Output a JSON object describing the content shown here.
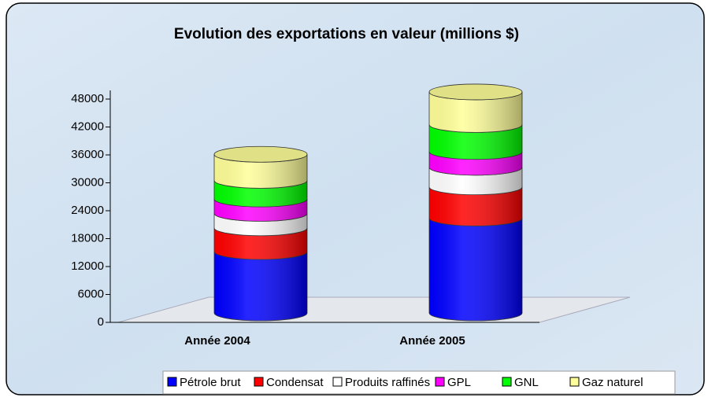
{
  "chart_data": {
    "type": "bar3d_stacked",
    "title": "Evolution des exportations en valeur (millions $)",
    "categories": [
      "Année 2004",
      "Année 2005"
    ],
    "series": [
      {
        "name": "Pétrole brut",
        "color": "#0000ff",
        "values": [
          13200,
          20400
        ]
      },
      {
        "name": "Condensat",
        "color": "#ff0000",
        "values": [
          5100,
          6700
        ]
      },
      {
        "name": "Produits raffinés",
        "color": "#ffffff",
        "values": [
          3100,
          4200
        ]
      },
      {
        "name": "GPL",
        "color": "#ff00ff",
        "values": [
          3100,
          3400
        ]
      },
      {
        "name": "GNL",
        "color": "#00ff00",
        "values": [
          4000,
          5800
        ]
      },
      {
        "name": "Gaz naturel",
        "color": "#ffff99",
        "values": [
          5600,
          7000
        ]
      }
    ],
    "ylim": [
      0,
      48000
    ],
    "yticks": [
      0,
      6000,
      12000,
      18000,
      24000,
      30000,
      36000,
      42000,
      48000
    ],
    "legend": "bottom"
  }
}
